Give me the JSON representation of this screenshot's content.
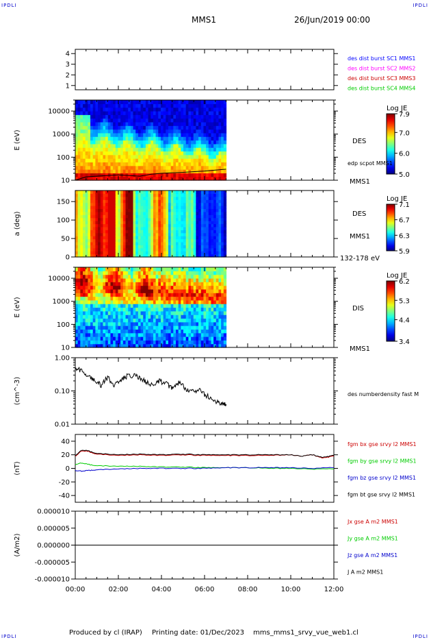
{
  "corners": {
    "top_left": "IPDLI",
    "top_right": "IPDLI",
    "bottom_left": "IPDLI",
    "bottom_right": "IPDLI"
  },
  "header": {
    "spacecraft": "MMS1",
    "date": "26/Jun/2019 00:00"
  },
  "footer": {
    "produced_by": "Produced by cl (IRAP)",
    "printing_date": "Printing date: 01/Dec/2023",
    "filename": "mms_mms1_srvy_vue_web1.cl"
  },
  "colors": {
    "blue": "#0000ff",
    "magenta": "#ff00ff",
    "red": "#cc0000",
    "green": "#00cc00",
    "black": "#000000"
  },
  "time_axis": {
    "ticks": [
      "00:00",
      "02:00",
      "04:00",
      "06:00",
      "08:00",
      "10:00",
      "12:00"
    ],
    "range_hours": [
      0,
      12
    ]
  },
  "chart_data": [
    {
      "type": "line",
      "ylabel": "",
      "yticks": [
        "1",
        "2",
        "3",
        "4"
      ],
      "ylim": [
        0.6,
        4.4
      ],
      "series_labels": [
        {
          "name": "des dist burst SC1 MMS1",
          "color": "#0000ff"
        },
        {
          "name": "des dist burst SC2 MMS2",
          "color": "#ff00ff"
        },
        {
          "name": "des dist burst SC3 MMS3",
          "color": "#cc0000"
        },
        {
          "name": "des dist burst SC4 MMS4",
          "color": "#00cc00"
        }
      ]
    },
    {
      "type": "heatmap",
      "ylabel": "E (eV)",
      "yscale": "log",
      "ylim": [
        10,
        30000
      ],
      "yticks": [
        "10",
        "100",
        "1000",
        "10000"
      ],
      "data_extent_hours": [
        0,
        7
      ],
      "side_labels": {
        "instrument": "DES",
        "overlay": "edp scpot MMS1",
        "spacecraft": "MMS1"
      },
      "colorbar": {
        "title": "Log JE",
        "ticks": [
          "7.9",
          "7.0",
          "6.0",
          "5.0"
        ],
        "range": [
          5.0,
          7.9
        ]
      },
      "overlay_line": {
        "name": "edp scpot MMS1",
        "x_hours": [
          0,
          0.5,
          1,
          2,
          3,
          3.5,
          4,
          5,
          6,
          7
        ],
        "y_eV": [
          10,
          14,
          15,
          17,
          15,
          18,
          20,
          22,
          25,
          30
        ]
      }
    },
    {
      "type": "heatmap",
      "ylabel": "a (deg)",
      "ylim": [
        0,
        180
      ],
      "yticks": [
        "0",
        "50",
        "100",
        "150"
      ],
      "data_extent_hours": [
        0,
        7
      ],
      "side_labels": {
        "instrument": "DES",
        "spacecraft": "MMS1",
        "energy_band": "132-178 eV"
      },
      "colorbar": {
        "title": "Log JE",
        "ticks": [
          "7.1",
          "6.7",
          "6.3",
          "5.9"
        ],
        "range": [
          5.9,
          7.1
        ]
      }
    },
    {
      "type": "heatmap",
      "ylabel": "E (eV)",
      "yscale": "log",
      "ylim": [
        10,
        30000
      ],
      "yticks": [
        "10",
        "100",
        "1000",
        "10000"
      ],
      "data_extent_hours": [
        0,
        7
      ],
      "side_labels": {
        "instrument": "DIS",
        "spacecraft": "MMS1"
      },
      "colorbar": {
        "title": "Log JE",
        "ticks": [
          "6.2",
          "5.3",
          "4.4",
          "3.4"
        ],
        "range": [
          3.4,
          6.2
        ]
      }
    },
    {
      "type": "line",
      "ylabel": "(cm^-3)",
      "yscale": "log",
      "ylim": [
        0.01,
        1.0
      ],
      "yticks": [
        "0.01",
        "0.10",
        "1.00"
      ],
      "series": [
        {
          "name": "des numberdensity fast M",
          "color": "#000000",
          "x": [
            0,
            0.3,
            0.6,
            0.9,
            1.2,
            1.5,
            1.8,
            2.1,
            2.4,
            2.7,
            3.0,
            3.3,
            3.6,
            3.9,
            4.2,
            4.5,
            4.8,
            5.1,
            5.4,
            5.7,
            6.0,
            6.3,
            6.6,
            6.9,
            7.0
          ],
          "y": [
            0.5,
            0.4,
            0.3,
            0.2,
            0.15,
            0.25,
            0.15,
            0.22,
            0.28,
            0.3,
            0.25,
            0.18,
            0.15,
            0.2,
            0.17,
            0.12,
            0.18,
            0.12,
            0.1,
            0.11,
            0.08,
            0.06,
            0.045,
            0.04,
            0.04
          ]
        }
      ]
    },
    {
      "type": "line",
      "ylabel": "(nT)",
      "ylim": [
        -50,
        50
      ],
      "yticks": [
        "-40",
        "-20",
        "0",
        "20",
        "40"
      ],
      "series": [
        {
          "name": "fgm bx gse srvy l2 MMS1",
          "color": "#cc0000",
          "x": [
            0,
            0.3,
            0.6,
            1,
            2,
            3,
            4,
            5,
            6,
            7,
            8,
            9,
            10,
            10.5,
            11,
            11.5,
            12
          ],
          "y": [
            18,
            26,
            25,
            21,
            19,
            20,
            19,
            20,
            19,
            19,
            19,
            19,
            20,
            18,
            20,
            15,
            18
          ]
        },
        {
          "name": "fgm by gse srvy l2 MMS1",
          "color": "#00cc00",
          "x": [
            0,
            0.3,
            0.6,
            1,
            2,
            3,
            4,
            5,
            6,
            7,
            8,
            9,
            10,
            11,
            12
          ],
          "y": [
            6,
            8,
            6,
            4,
            3,
            3,
            2,
            2,
            1,
            1,
            1,
            0,
            0,
            -1,
            -1
          ]
        },
        {
          "name": "fgm bz gse srvy l2 MMS1",
          "color": "#0000cc",
          "x": [
            0,
            0.3,
            0.6,
            1,
            2,
            3,
            4,
            5,
            6,
            7,
            8,
            9,
            10,
            11,
            12
          ],
          "y": [
            -3,
            -4,
            -3,
            -2,
            -1,
            0,
            0,
            0,
            0,
            1,
            1,
            1,
            1,
            0,
            1
          ]
        },
        {
          "name": "fgm bt gse srvy l2 MMS1",
          "color": "#000000",
          "x": [
            0,
            0.3,
            0.6,
            1,
            2,
            3,
            4,
            5,
            6,
            7,
            8,
            9,
            10,
            10.5,
            11,
            11.5,
            12
          ],
          "y": [
            19,
            27,
            26,
            22,
            20,
            21,
            20,
            21,
            20,
            20,
            20,
            20,
            20,
            18,
            20,
            16,
            19
          ]
        }
      ]
    },
    {
      "type": "line",
      "ylabel": "(A/m2)",
      "ylim": [
        -1e-05,
        1e-05
      ],
      "yticks": [
        "-0.000010",
        "-0.000005",
        "0.000000",
        "0.000005",
        "0.000010"
      ],
      "series": [
        {
          "name": "Jx gse A m2 MMS1",
          "color": "#cc0000",
          "x": [
            0,
            12
          ],
          "y": [
            0,
            0
          ]
        },
        {
          "name": "Jy gse A m2 MMS1",
          "color": "#00cc00",
          "x": [
            0,
            12
          ],
          "y": [
            0,
            0
          ]
        },
        {
          "name": "Jz gse A m2 MMS1",
          "color": "#0000cc",
          "x": [
            0,
            12
          ],
          "y": [
            0,
            0
          ]
        },
        {
          "name": "J A m2 MMS1",
          "color": "#000000",
          "x": [
            0,
            12
          ],
          "y": [
            0,
            0
          ]
        }
      ]
    }
  ]
}
